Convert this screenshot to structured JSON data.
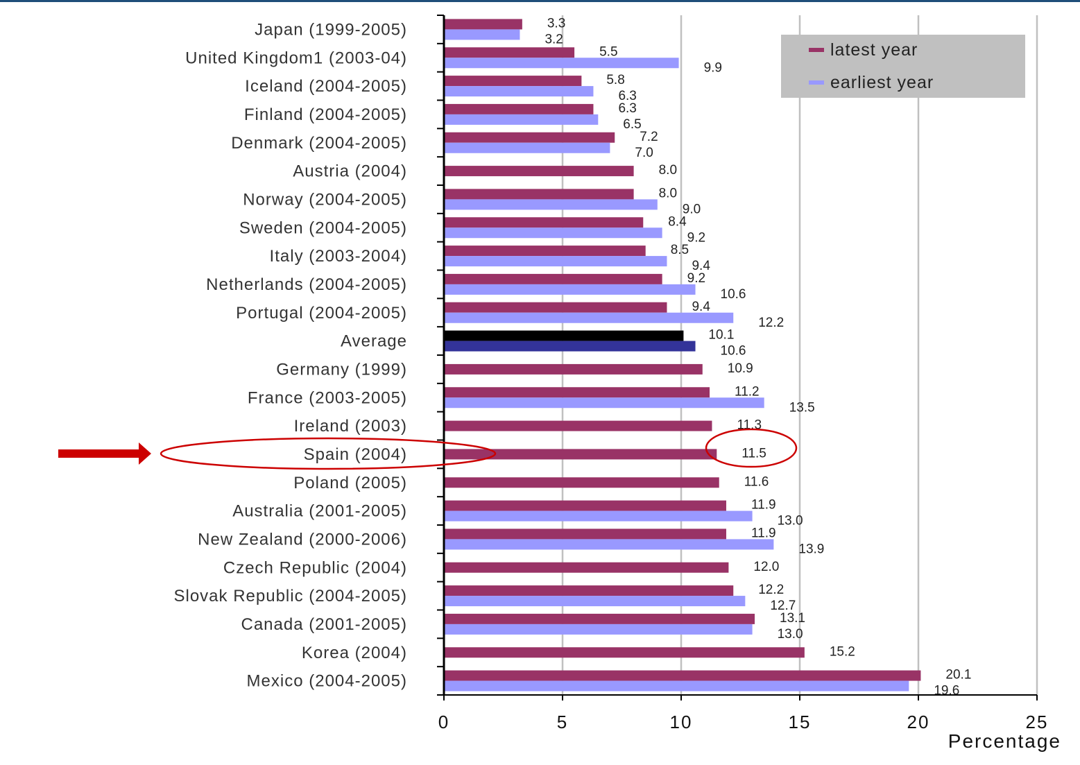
{
  "chart_data": {
    "type": "bar",
    "orientation": "horizontal",
    "title": "",
    "xlabel": "Percentage",
    "ylabel": "",
    "xlim": [
      0,
      25
    ],
    "xticks": [
      "0",
      "5",
      "10",
      "15",
      "20",
      "25"
    ],
    "grid": true,
    "legend_position": "top-right",
    "categories": [
      "Japan (1999-2005)",
      "United Kingdom1  (2003-04)",
      "Iceland (2004-2005)",
      "Finland (2004-2005)",
      "Denmark (2004-2005)",
      "Austria (2004)",
      "Norway (2004-2005)",
      "Sweden (2004-2005)",
      "Italy (2003-2004)",
      "Netherlands (2004-2005)",
      "Portugal (2004-2005)",
      "Average",
      "Germany (1999)",
      "France (2003-2005)",
      "Ireland (2003)",
      "Spain (2004)",
      "Poland (2005)",
      "Australia (2001-2005)",
      "New Zealand (2000-2006)",
      "Czech Republic (2004)",
      "Slovak Republic  (2004-2005)",
      "Canada (2001-2005)",
      "Korea (2004)",
      "Mexico (2004-2005)"
    ],
    "series": [
      {
        "name": "latest year",
        "color": "#993366",
        "values": [
          3.3,
          5.5,
          5.8,
          6.3,
          7.2,
          8.0,
          8.0,
          8.4,
          8.5,
          9.2,
          9.4,
          10.1,
          10.9,
          11.2,
          11.3,
          11.5,
          11.6,
          11.9,
          11.9,
          12.0,
          12.2,
          13.1,
          15.2,
          20.1
        ],
        "labels": [
          "3.3",
          "5.5",
          "5.8",
          "6.3",
          "7.2",
          "8.0",
          "8.0",
          "8.4",
          "8.5",
          "9.2",
          "9.4",
          "10.1",
          "10.9",
          "11.2",
          "11.3",
          "11.5",
          "11.6",
          "11.9",
          "11.9",
          "12.0",
          "12.2",
          "13.1",
          "15.2",
          "20.1"
        ]
      },
      {
        "name": "earliest year",
        "color": "#9999ff",
        "values": [
          3.2,
          9.9,
          6.3,
          6.5,
          7.0,
          null,
          9.0,
          9.2,
          9.4,
          10.6,
          12.2,
          10.6,
          null,
          13.5,
          null,
          null,
          null,
          13.0,
          13.9,
          null,
          12.7,
          13.0,
          null,
          19.6
        ],
        "labels": [
          "3.2",
          "9.9",
          "6.3",
          "6.5",
          "7.0",
          null,
          "9.0",
          "9.2",
          "9.4",
          "10.6",
          "12.2",
          "10.6",
          null,
          "13.5",
          null,
          null,
          null,
          "13.0",
          "13.9",
          null,
          "12.7",
          "13.0",
          null,
          "19.6"
        ]
      }
    ],
    "average_colors": {
      "latest": "#000000",
      "earliest": "#333399"
    },
    "highlighted_category": "Spain (2004)",
    "highlight_color": "#cc0000"
  }
}
